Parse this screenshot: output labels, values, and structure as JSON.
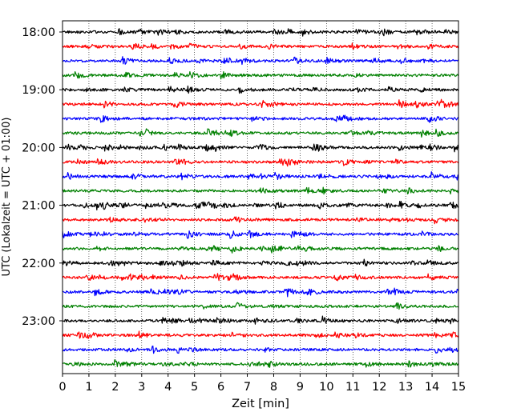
{
  "chart_data": {
    "type": "line",
    "subtype": "seismogram helicorder",
    "xlabel": "Zeit  [min]",
    "ylabel": "UTC (Lokalzeit = UTC + 01:00)",
    "xlim": [
      0,
      15
    ],
    "x_ticks": [
      0,
      1,
      2,
      3,
      4,
      5,
      6,
      7,
      8,
      9,
      10,
      11,
      12,
      13,
      14,
      15
    ],
    "x_tick_labels": [
      "0",
      "1",
      "2",
      "3",
      "4",
      "5",
      "6",
      "7",
      "8",
      "9",
      "10",
      "11",
      "12",
      "13",
      "14",
      "15"
    ],
    "y_tick_labels": [
      "18:00",
      "19:00",
      "20:00",
      "21:00",
      "22:00",
      "23:00"
    ],
    "grid": "vertical dotted lines at each minute",
    "row_minutes": 15,
    "rows_per_hour": 4,
    "trace_color_cycle": [
      "#000000",
      "#ff0000",
      "#0000ff",
      "#008000"
    ],
    "traces": [
      {
        "start": "18:00"
      },
      {
        "start": "18:15"
      },
      {
        "start": "18:30"
      },
      {
        "start": "18:45"
      },
      {
        "start": "19:00"
      },
      {
        "start": "19:15"
      },
      {
        "start": "19:30"
      },
      {
        "start": "19:45"
      },
      {
        "start": "20:00"
      },
      {
        "start": "20:15"
      },
      {
        "start": "20:30"
      },
      {
        "start": "20:45"
      },
      {
        "start": "21:00"
      },
      {
        "start": "21:15"
      },
      {
        "start": "21:30"
      },
      {
        "start": "21:45"
      },
      {
        "start": "22:00"
      },
      {
        "start": "22:15"
      },
      {
        "start": "22:30"
      },
      {
        "start": "22:45"
      },
      {
        "start": "23:00"
      },
      {
        "start": "23:15"
      },
      {
        "start": "23:30"
      },
      {
        "start": "23:45"
      }
    ]
  }
}
